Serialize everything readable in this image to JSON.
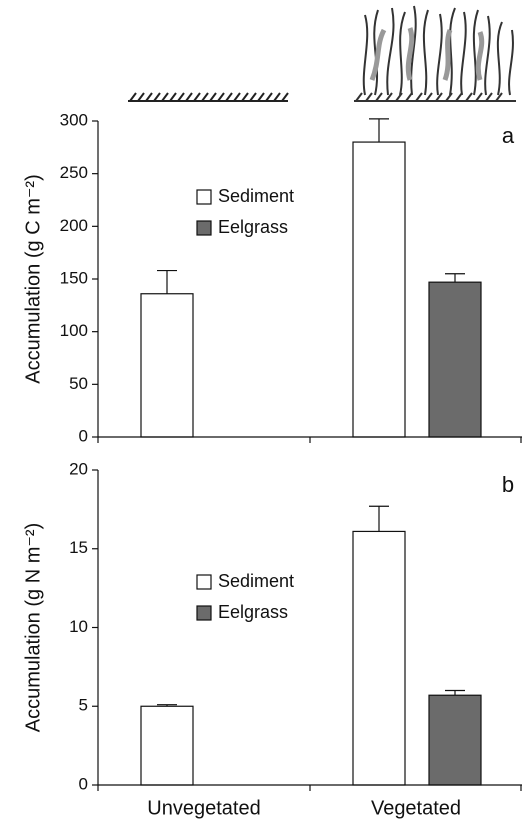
{
  "chart_data": [
    {
      "type": "bar",
      "panel_label": "a",
      "ylabel": "Accumulation (g C m⁻²)",
      "categories": [
        null,
        null
      ],
      "series": [
        {
          "name": "Sediment",
          "color": "#ffffff",
          "values": [
            136,
            280
          ],
          "errors": [
            22,
            22
          ]
        },
        {
          "name": "Eelgrass",
          "color": "#6b6b6b",
          "values": [
            null,
            147
          ],
          "errors": [
            null,
            8
          ]
        }
      ],
      "ylim": [
        0,
        300
      ],
      "yticks": [
        0,
        50,
        100,
        150,
        200,
        250,
        300
      ]
    },
    {
      "type": "bar",
      "panel_label": "b",
      "ylabel": "Accumulation (g N m⁻²)",
      "categories": [
        "Unvegetated",
        "Vegetated"
      ],
      "series": [
        {
          "name": "Sediment",
          "color": "#ffffff",
          "values": [
            5.0,
            16.1
          ],
          "errors": [
            0.1,
            1.6
          ]
        },
        {
          "name": "Eelgrass",
          "color": "#6b6b6b",
          "values": [
            null,
            5.7
          ],
          "errors": [
            null,
            0.3
          ]
        }
      ],
      "ylim": [
        0,
        20
      ],
      "yticks": [
        0,
        5,
        10,
        15,
        20
      ]
    }
  ]
}
